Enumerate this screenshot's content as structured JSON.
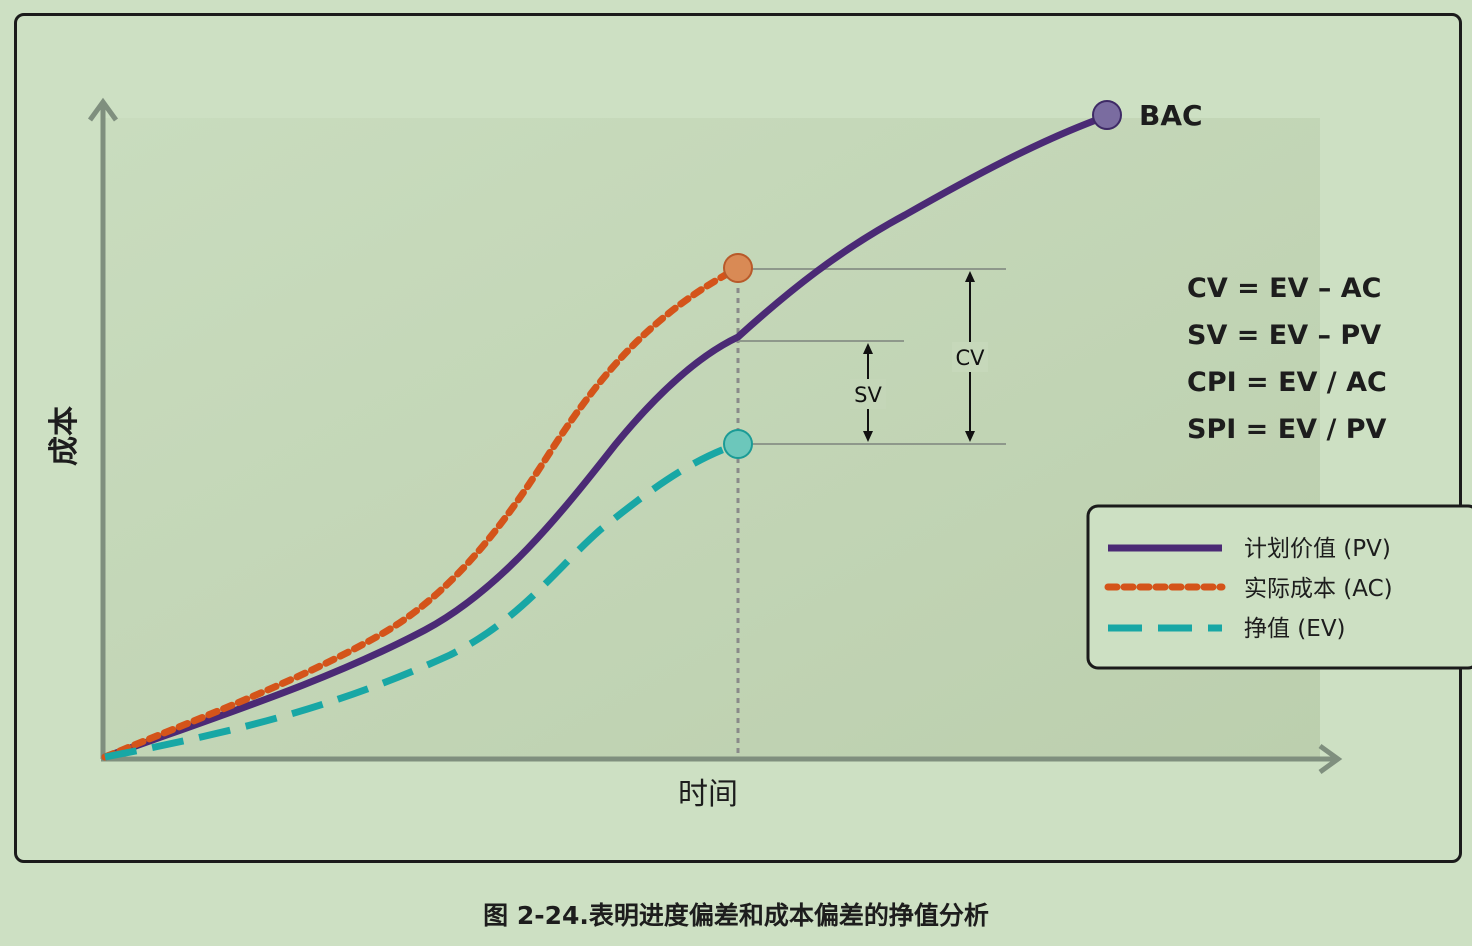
{
  "axes": {
    "y_label": "成本",
    "x_label": "时间"
  },
  "markers": {
    "bac_label": "BAC"
  },
  "variances": {
    "sv_label": "SV",
    "cv_label": "CV"
  },
  "formulas": [
    "CV = EV – AC",
    "SV = EV – PV",
    "CPI = EV / AC",
    "SPI = EV / PV"
  ],
  "legend": [
    {
      "label": "计划价值 (PV)",
      "color": "#4b2a75",
      "style": "solid"
    },
    {
      "label": "实际成本 (AC)",
      "color": "#d4541a",
      "style": "dotted"
    },
    {
      "label": "挣值 (EV)",
      "color": "#18a7a5",
      "style": "dashed"
    }
  ],
  "colors": {
    "pv": "#4b2a75",
    "ac": "#d4541a",
    "ev": "#18a7a5",
    "bac_marker": "#7a6ca0",
    "ac_marker": "#d98a55",
    "ev_marker": "#6cc7bb",
    "axis": "#7f8f7e",
    "plot_bg": "#bfd2b3"
  },
  "caption": "图 2-24.表明进度偏差和成本偏差的挣值分析"
}
